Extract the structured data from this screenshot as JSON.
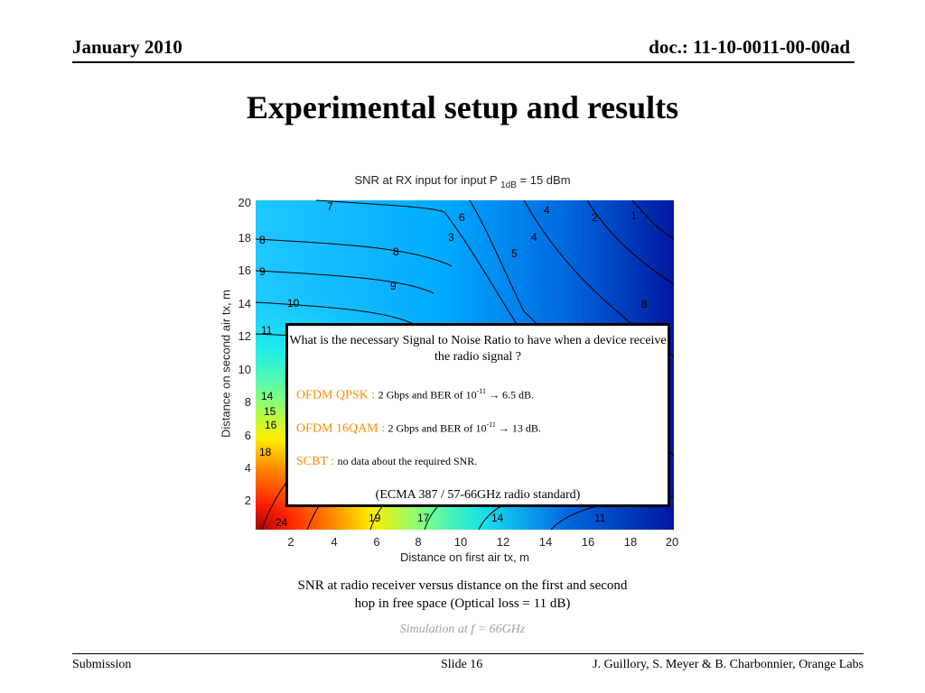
{
  "header": {
    "date": "January 2010",
    "doc": "doc.: 11-10-0011-00-00ad"
  },
  "title": "Experimental setup and results",
  "plot": {
    "title_main": "SNR at RX input for input P",
    "title_sub": "1dB",
    "title_tail": " = 15 dBm",
    "xlabel": "Distance on first air tx, m",
    "ylabel": "Distance on second air tx, m",
    "xticks": [
      "2",
      "4",
      "6",
      "8",
      "10",
      "12",
      "14",
      "16",
      "18",
      "20"
    ],
    "yticks": [
      "2",
      "4",
      "6",
      "8",
      "10",
      "12",
      "14",
      "16",
      "18",
      "20"
    ],
    "contour_labels": [
      "7",
      "6",
      "5",
      "4",
      "3",
      "2",
      "1",
      "8",
      "7",
      "6",
      "5",
      "4",
      "3",
      "8",
      "9",
      "10",
      "11",
      "14",
      "15",
      "16",
      "18",
      "19",
      "17",
      "14",
      "11",
      "24"
    ]
  },
  "overlay": {
    "question": "What is the necessary Signal to Noise Ratio to have when a device receive the radio signal ?",
    "q1_label": "OFDM QPSK : ",
    "q1_text": "2 Gbps and BER of 10",
    "q1_exp": "-11",
    "q1_tail": " → 6.5 dB.",
    "q2_label": "OFDM 16QAM : ",
    "q2_text": "2 Gbps and BER of 10",
    "q2_exp": "-11",
    "q2_tail": " → 13 dB.",
    "q3_label": "SCBT : ",
    "q3_text": "no data about the required SNR.",
    "standard": "(ECMA 387 / 57-66GHz radio standard)"
  },
  "caption": "SNR at radio receiver versus distance on the first and second hop in free space (Optical loss = 11 dB)",
  "simulation": "Simulation at f = 66GHz",
  "footer": {
    "left": "Submission",
    "slide": "Slide 16",
    "right": "J. Guillory, S. Meyer & B. Charbonnier, Orange Labs"
  },
  "colors": {
    "accent": "#ff8c00",
    "sim_gray": "#a0a0a0"
  }
}
